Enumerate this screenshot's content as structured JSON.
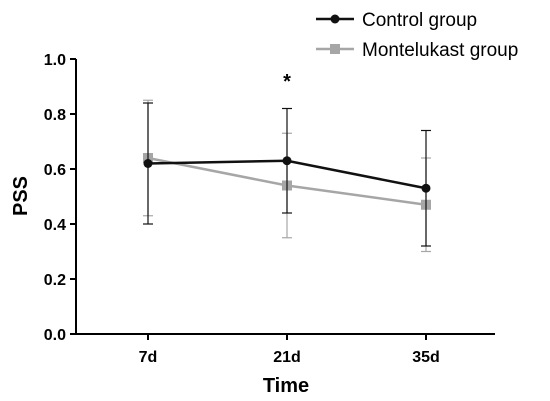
{
  "chart_data": {
    "type": "line",
    "title": "",
    "xlabel": "Time",
    "ylabel": "PSS",
    "categories": [
      "7d",
      "21d",
      "35d"
    ],
    "ylim": [
      0.0,
      1.0
    ],
    "yticks": [
      "0.0",
      "0.2",
      "0.4",
      "0.6",
      "0.8",
      "1.0"
    ],
    "grid": false,
    "legend_position": "top-right",
    "series": [
      {
        "name": "Control group",
        "color": "#111111",
        "marker": "circle",
        "values": [
          0.62,
          0.63,
          0.53
        ],
        "error": [
          0.22,
          0.19,
          0.21
        ]
      },
      {
        "name": "Montelukast group",
        "color": "#a6a6a6",
        "marker": "square",
        "values": [
          0.64,
          0.54,
          0.47
        ],
        "error": [
          0.21,
          0.19,
          0.17
        ]
      }
    ],
    "annotations": [
      {
        "text": "*",
        "category": "21d"
      }
    ]
  }
}
